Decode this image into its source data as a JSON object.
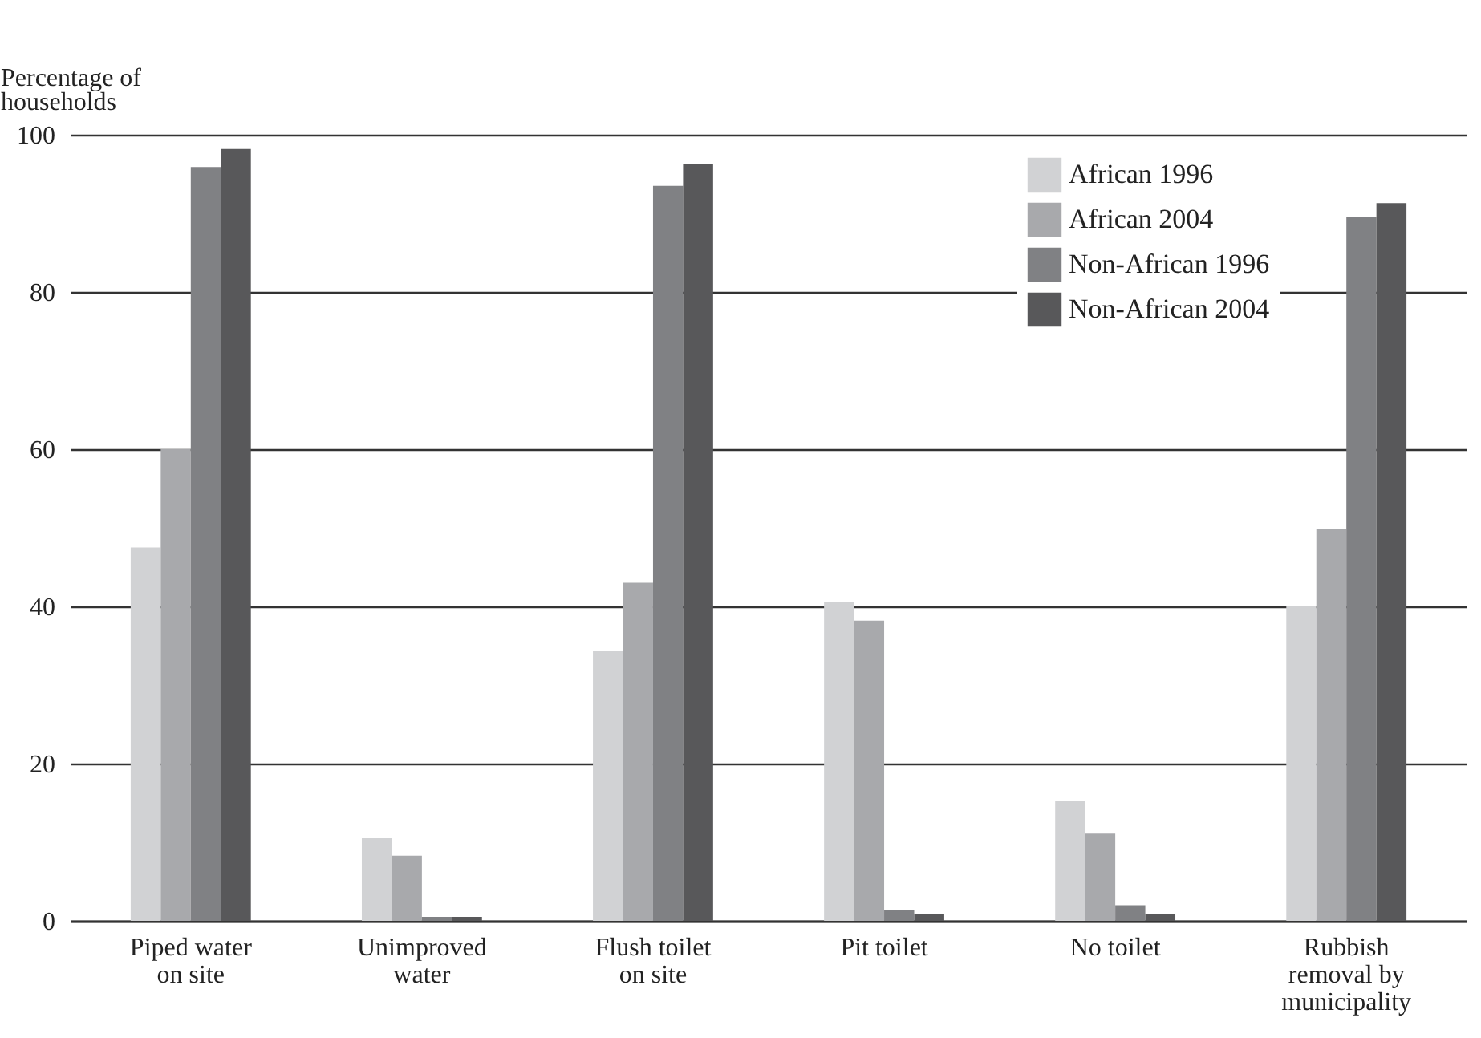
{
  "chart_data": {
    "type": "bar",
    "ylabel": "Percentage of households",
    "categories": [
      "Piped water on site",
      "Unimproved water",
      "Flush toilet on site",
      "Pit toilet",
      "No toilet",
      "Rubbish removal by municipality"
    ],
    "series": [
      {
        "name": "African 1996",
        "color": "#d1d2d4",
        "values": [
          47.5,
          10.5,
          34.3,
          40.6,
          15.2,
          40
        ]
      },
      {
        "name": "African 2004",
        "color": "#a8a9ac",
        "values": [
          60,
          8.3,
          43,
          38.2,
          11.1,
          49.8
        ]
      },
      {
        "name": "Non-African 1996",
        "color": "#808184",
        "values": [
          95.9,
          0.5,
          93.5,
          1.4,
          2,
          89.6
        ]
      },
      {
        "name": "Non-African 2004",
        "color": "#58585a",
        "values": [
          98.2,
          0.5,
          96.3,
          0.9,
          0.9,
          91.3
        ]
      }
    ],
    "ylim": [
      0,
      100
    ],
    "yticks": [
      0,
      20,
      40,
      60,
      80,
      100
    ],
    "grid": "y",
    "legend": "top right"
  }
}
